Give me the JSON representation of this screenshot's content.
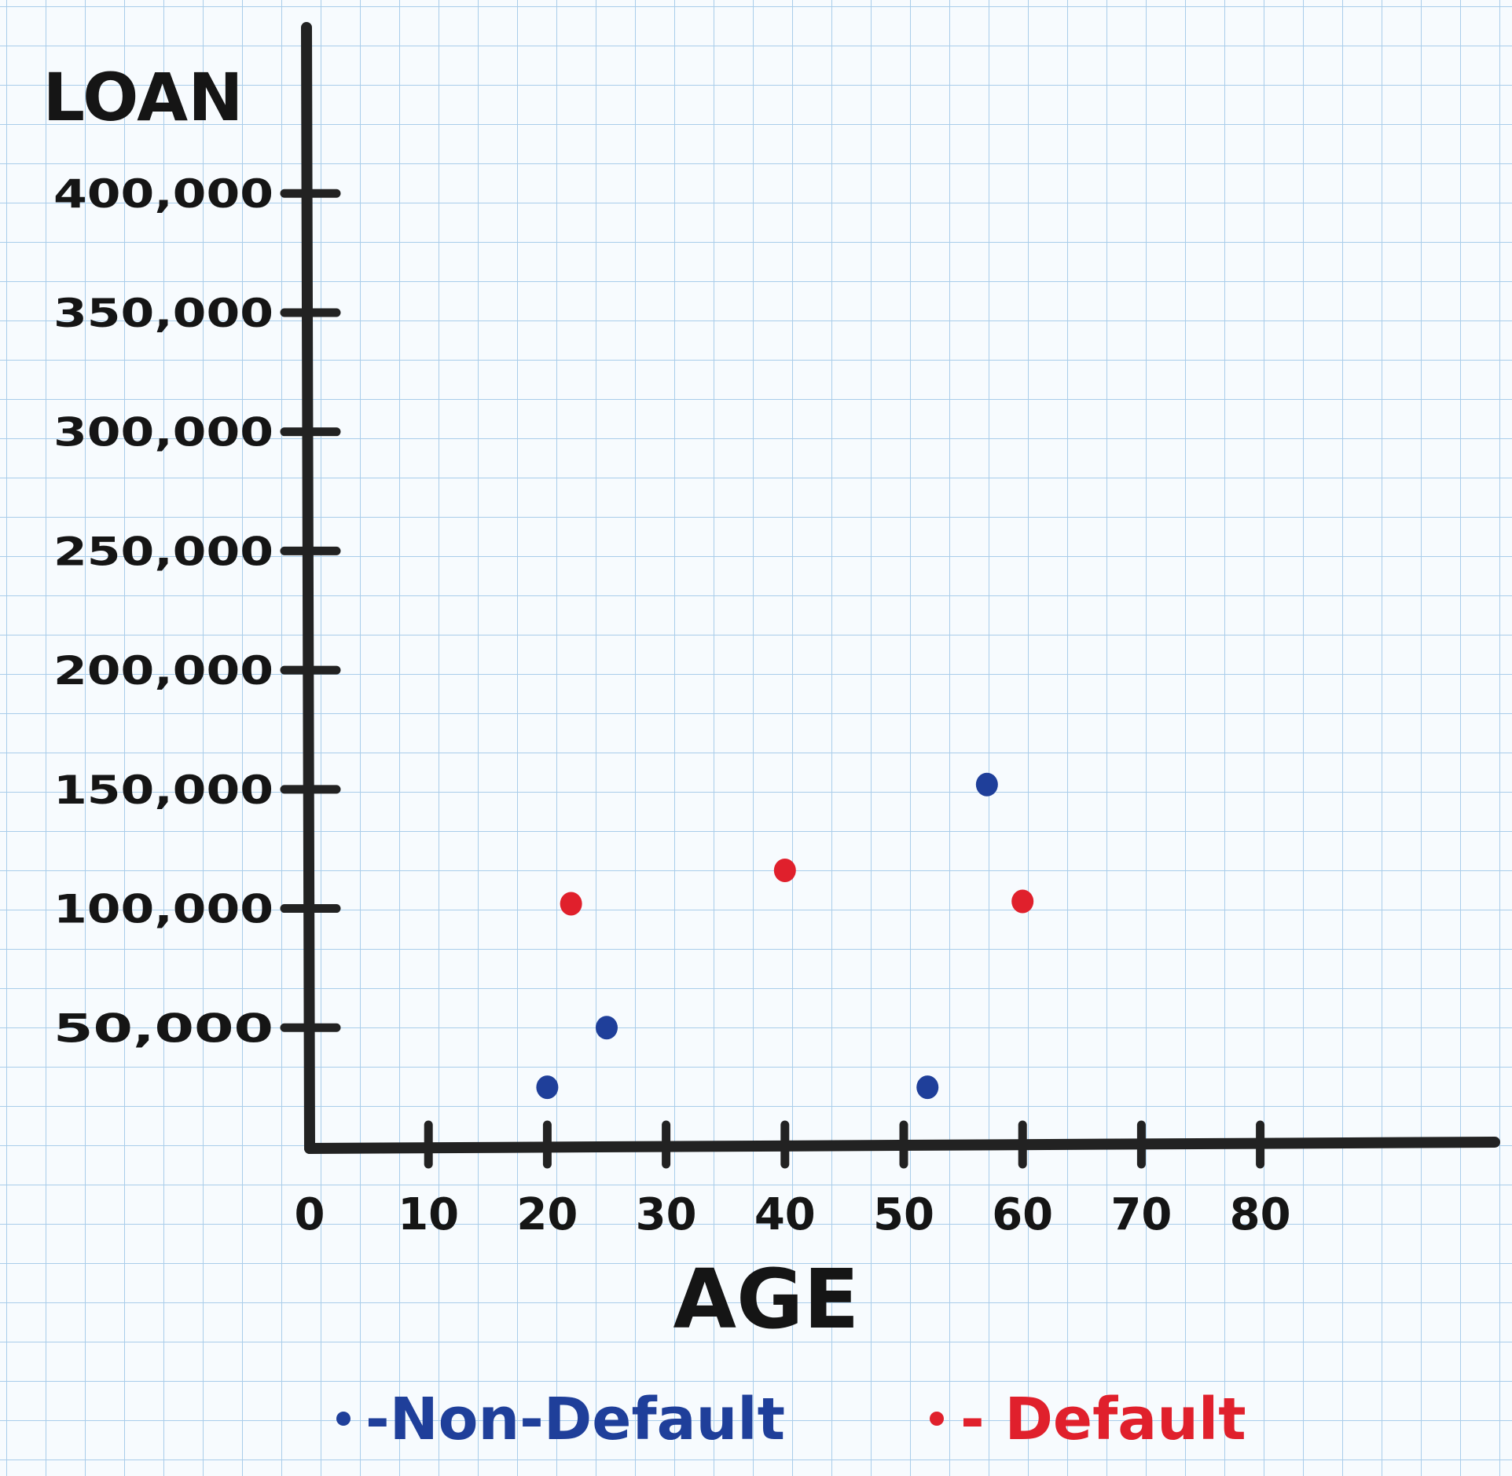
{
  "chart_data": {
    "type": "scatter",
    "xlabel": "AGE",
    "ylabel": "LOAN",
    "xlim": [
      0,
      100
    ],
    "ylim": [
      0,
      470000
    ],
    "x_ticks": [
      0,
      10,
      20,
      30,
      40,
      50,
      60,
      70,
      80
    ],
    "x_tick_labels": [
      "0",
      "10",
      "20",
      "30",
      "40",
      "50",
      "60",
      "70",
      "80"
    ],
    "y_ticks": [
      50000,
      100000,
      150000,
      200000,
      250000,
      300000,
      350000,
      400000
    ],
    "y_tick_labels": [
      "50,000",
      "100,000",
      "150,000",
      "200,000",
      "250,000",
      "300,000",
      "350,000",
      "400,000"
    ],
    "grid": true,
    "legend_position": "bottom",
    "series": [
      {
        "name": "Non-Default",
        "color": "#1f3f9a",
        "legend_label": "-Non-Default",
        "points": [
          {
            "x": 20,
            "y": 25000
          },
          {
            "x": 25,
            "y": 50000
          },
          {
            "x": 52,
            "y": 25000
          },
          {
            "x": 57,
            "y": 152000
          }
        ]
      },
      {
        "name": "Default",
        "color": "#e0202c",
        "legend_label": "- Default",
        "points": [
          {
            "x": 22,
            "y": 102000
          },
          {
            "x": 40,
            "y": 116000
          },
          {
            "x": 60,
            "y": 103000
          }
        ]
      }
    ]
  }
}
